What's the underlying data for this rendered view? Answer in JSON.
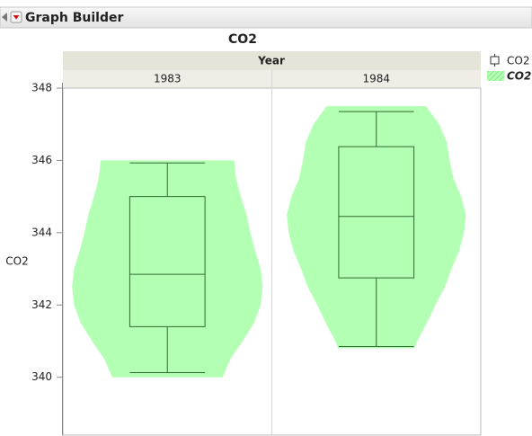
{
  "window": {
    "title": "Graph Builder"
  },
  "chart_data": {
    "type": "violin",
    "title": "CO2",
    "ylabel": "CO2",
    "group_label": "Year",
    "categories": [
      "1983",
      "1984"
    ],
    "ylim": [
      338.4,
      348
    ],
    "yticks": [
      340,
      342,
      344,
      346,
      348
    ],
    "color": "#b3ffb3",
    "box_color": "#2e6b2e",
    "legend": [
      "CO2",
      "CO2"
    ],
    "groups": [
      {
        "min": 340.13,
        "q1": 341.4,
        "median": 342.85,
        "q3": 345.0,
        "max": 345.93,
        "violin_y": [
          346.0,
          345.5,
          345.0,
          344.5,
          344.0,
          343.5,
          343.0,
          342.5,
          342.0,
          341.5,
          341.0,
          340.5,
          340.0
        ],
        "violin_width": [
          0.7,
          0.72,
          0.77,
          0.83,
          0.87,
          0.92,
          0.98,
          1.0,
          0.98,
          0.91,
          0.79,
          0.66,
          0.58
        ]
      },
      {
        "min": 340.85,
        "q1": 342.75,
        "median": 344.45,
        "q3": 346.38,
        "max": 347.35,
        "violin_y": [
          347.5,
          347.0,
          346.5,
          346.0,
          345.5,
          345.0,
          344.5,
          344.0,
          343.5,
          343.0,
          342.5,
          342.0,
          341.5,
          341.0,
          340.8
        ],
        "violin_width": [
          0.52,
          0.66,
          0.74,
          0.77,
          0.81,
          0.89,
          0.94,
          0.92,
          0.87,
          0.79,
          0.72,
          0.62,
          0.53,
          0.43,
          0.4
        ]
      }
    ]
  }
}
